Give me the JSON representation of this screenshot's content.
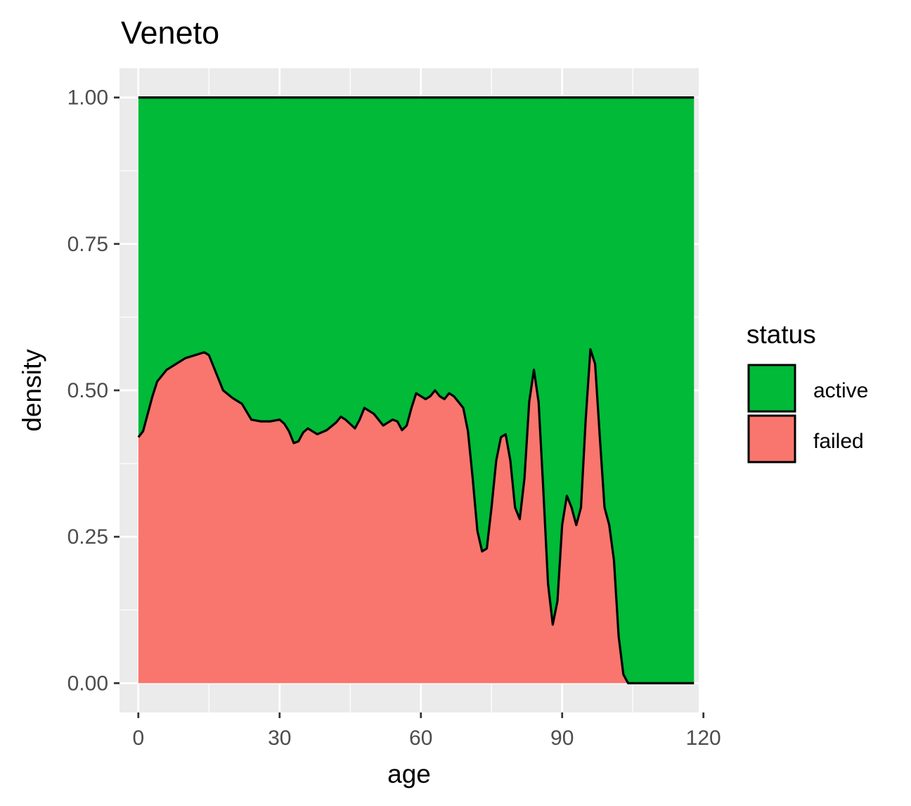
{
  "chart_data": {
    "type": "area",
    "title": "Veneto",
    "xlabel": "age",
    "ylabel": "density",
    "xlim": [
      -4,
      119
    ],
    "ylim": [
      -0.05,
      1.05
    ],
    "x_ticks": [
      0,
      30,
      60,
      90,
      120
    ],
    "x_tick_labels": [
      "0",
      "30",
      "60",
      "90",
      "120"
    ],
    "y_ticks": [
      0,
      0.25,
      0.5,
      0.75,
      1
    ],
    "y_tick_labels": [
      "0.00",
      "0.25",
      "0.50",
      "0.75",
      "1.00"
    ],
    "grid": true,
    "legend": {
      "title": "status",
      "position": "right",
      "items": [
        {
          "label": "active",
          "color": "#00BA38"
        },
        {
          "label": "failed",
          "color": "#F8766D"
        }
      ]
    },
    "x": [
      0,
      1,
      2,
      3,
      4,
      6,
      8,
      10,
      12,
      14,
      15,
      16,
      18,
      20,
      22,
      24,
      26,
      28,
      30,
      31,
      32,
      33,
      34,
      35,
      36,
      38,
      40,
      42,
      43,
      44,
      46,
      47,
      48,
      50,
      52,
      54,
      55,
      56,
      57,
      58,
      59,
      60,
      61,
      62,
      63,
      64,
      65,
      66,
      67,
      68,
      69,
      70,
      71,
      72,
      73,
      74,
      75,
      76,
      77,
      78,
      79,
      80,
      81,
      82,
      83,
      84,
      85,
      86,
      87,
      88,
      89,
      90,
      91,
      92,
      93,
      94,
      95,
      96,
      97,
      98,
      99,
      100,
      101,
      102,
      103,
      104,
      106,
      110,
      118
    ],
    "series": [
      {
        "name": "failed",
        "color": "#F8766D",
        "values": [
          0.42,
          0.43,
          0.46,
          0.49,
          0.515,
          0.535,
          0.545,
          0.555,
          0.56,
          0.565,
          0.56,
          0.54,
          0.5,
          0.487,
          0.477,
          0.45,
          0.447,
          0.447,
          0.45,
          0.443,
          0.43,
          0.41,
          0.413,
          0.428,
          0.435,
          0.425,
          0.432,
          0.445,
          0.455,
          0.45,
          0.435,
          0.45,
          0.47,
          0.46,
          0.44,
          0.45,
          0.447,
          0.432,
          0.44,
          0.47,
          0.495,
          0.49,
          0.485,
          0.49,
          0.5,
          0.49,
          0.485,
          0.495,
          0.49,
          0.48,
          0.47,
          0.43,
          0.35,
          0.26,
          0.225,
          0.23,
          0.3,
          0.38,
          0.42,
          0.425,
          0.38,
          0.3,
          0.28,
          0.35,
          0.48,
          0.535,
          0.48,
          0.33,
          0.17,
          0.1,
          0.14,
          0.27,
          0.32,
          0.3,
          0.27,
          0.3,
          0.45,
          0.57,
          0.545,
          0.42,
          0.3,
          0.27,
          0.21,
          0.08,
          0.015,
          0,
          0,
          0,
          0
        ]
      },
      {
        "name": "active",
        "color": "#00BA38",
        "values": [
          0.58,
          0.57,
          0.54,
          0.51,
          0.485,
          0.465,
          0.455,
          0.445,
          0.44,
          0.435,
          0.44,
          0.46,
          0.5,
          0.513,
          0.523,
          0.55,
          0.553,
          0.553,
          0.55,
          0.557,
          0.57,
          0.59,
          0.587,
          0.572,
          0.565,
          0.575,
          0.568,
          0.555,
          0.545,
          0.55,
          0.565,
          0.55,
          0.53,
          0.54,
          0.56,
          0.55,
          0.553,
          0.568,
          0.56,
          0.53,
          0.505,
          0.51,
          0.515,
          0.51,
          0.5,
          0.51,
          0.515,
          0.505,
          0.51,
          0.52,
          0.53,
          0.57,
          0.65,
          0.74,
          0.775,
          0.77,
          0.7,
          0.62,
          0.58,
          0.575,
          0.62,
          0.7,
          0.72,
          0.65,
          0.52,
          0.465,
          0.52,
          0.67,
          0.83,
          0.9,
          0.86,
          0.73,
          0.68,
          0.7,
          0.73,
          0.7,
          0.55,
          0.43,
          0.455,
          0.58,
          0.7,
          0.73,
          0.79,
          0.92,
          0.985,
          1,
          1,
          1,
          1
        ]
      }
    ]
  }
}
